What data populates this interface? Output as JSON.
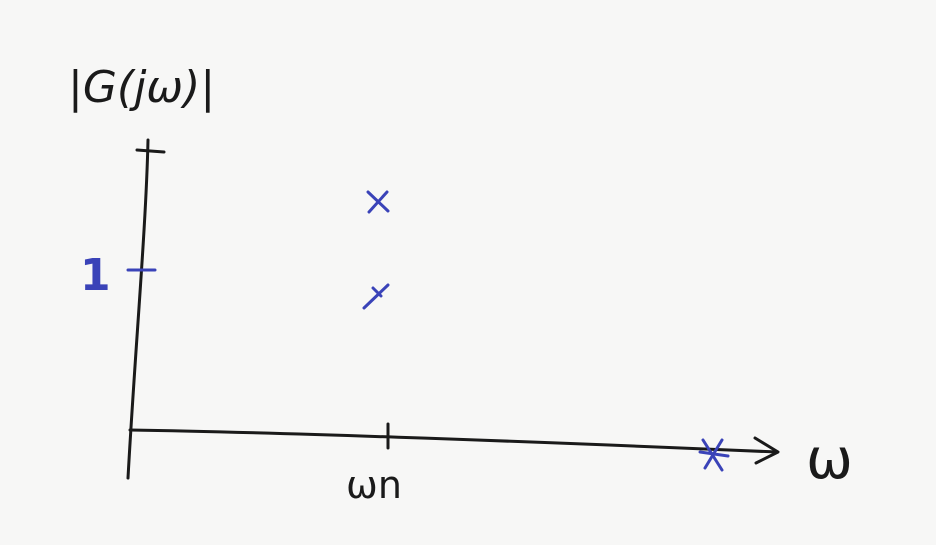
{
  "diagram": {
    "y_axis_label": "|G(jω)|",
    "x_axis_label": "ω",
    "x_tick_label": "ωn",
    "y_tick_label": "1",
    "ink_color": "#1a1a1a",
    "marker_color": "#3a43b8"
  }
}
